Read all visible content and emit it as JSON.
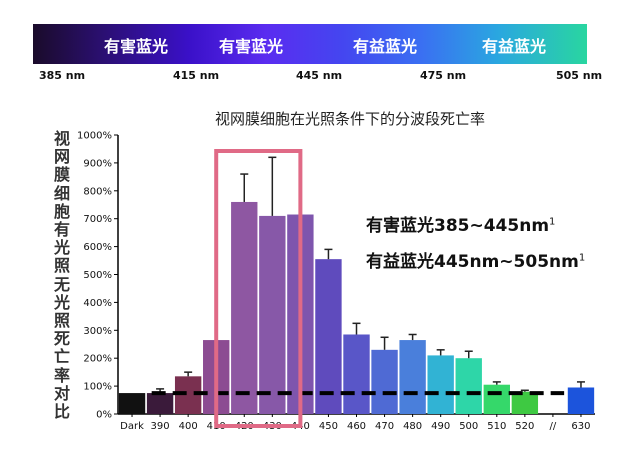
{
  "spectrum": {
    "bands": [
      "有害蓝光",
      "有害蓝光",
      "有益蓝光",
      "有益蓝光"
    ],
    "nm_labels": [
      "385 nm",
      "415 nm",
      "445 nm",
      "475 nm",
      "505 nm"
    ]
  },
  "chart_data": {
    "type": "bar",
    "title": "视网膜细胞在光照条件下的分波段死亡率",
    "ylabel": "视网膜细胞有光照无光照死亡率对比",
    "categories": [
      "Dark",
      "390",
      "400",
      "410",
      "420",
      "430",
      "440",
      "450",
      "460",
      "470",
      "480",
      "490",
      "500",
      "510",
      "520",
      "//",
      "630"
    ],
    "values": [
      75,
      75,
      135,
      265,
      760,
      710,
      715,
      555,
      285,
      230,
      265,
      210,
      200,
      105,
      80,
      null,
      95
    ],
    "errors": [
      0,
      15,
      15,
      0,
      100,
      210,
      0,
      35,
      40,
      45,
      20,
      20,
      25,
      10,
      5,
      null,
      20
    ],
    "colors": [
      "#111111",
      "#3a1a3a",
      "#7a3050",
      "#8c4c92",
      "#8e57a2",
      "#8758a8",
      "#7e55ad",
      "#5f4bbd",
      "#5956c8",
      "#4f6ad4",
      "#4a7fdb",
      "#31b3d4",
      "#2ed6a8",
      "#35d86a",
      "#3ec942",
      null,
      "#1c54dc"
    ],
    "yticks": [
      "0%",
      "100%",
      "200%",
      "300%",
      "400%",
      "500%",
      "600%",
      "700%",
      "800%",
      "900%",
      "1000%"
    ],
    "ylim": [
      0,
      1000
    ],
    "reference_line": 75,
    "highlight_range": [
      "410",
      "440"
    ],
    "grid": false,
    "annotations": [
      "有害蓝光385~445nm",
      "有益蓝光445nm~505nm"
    ],
    "annotation_superscript": "1"
  }
}
